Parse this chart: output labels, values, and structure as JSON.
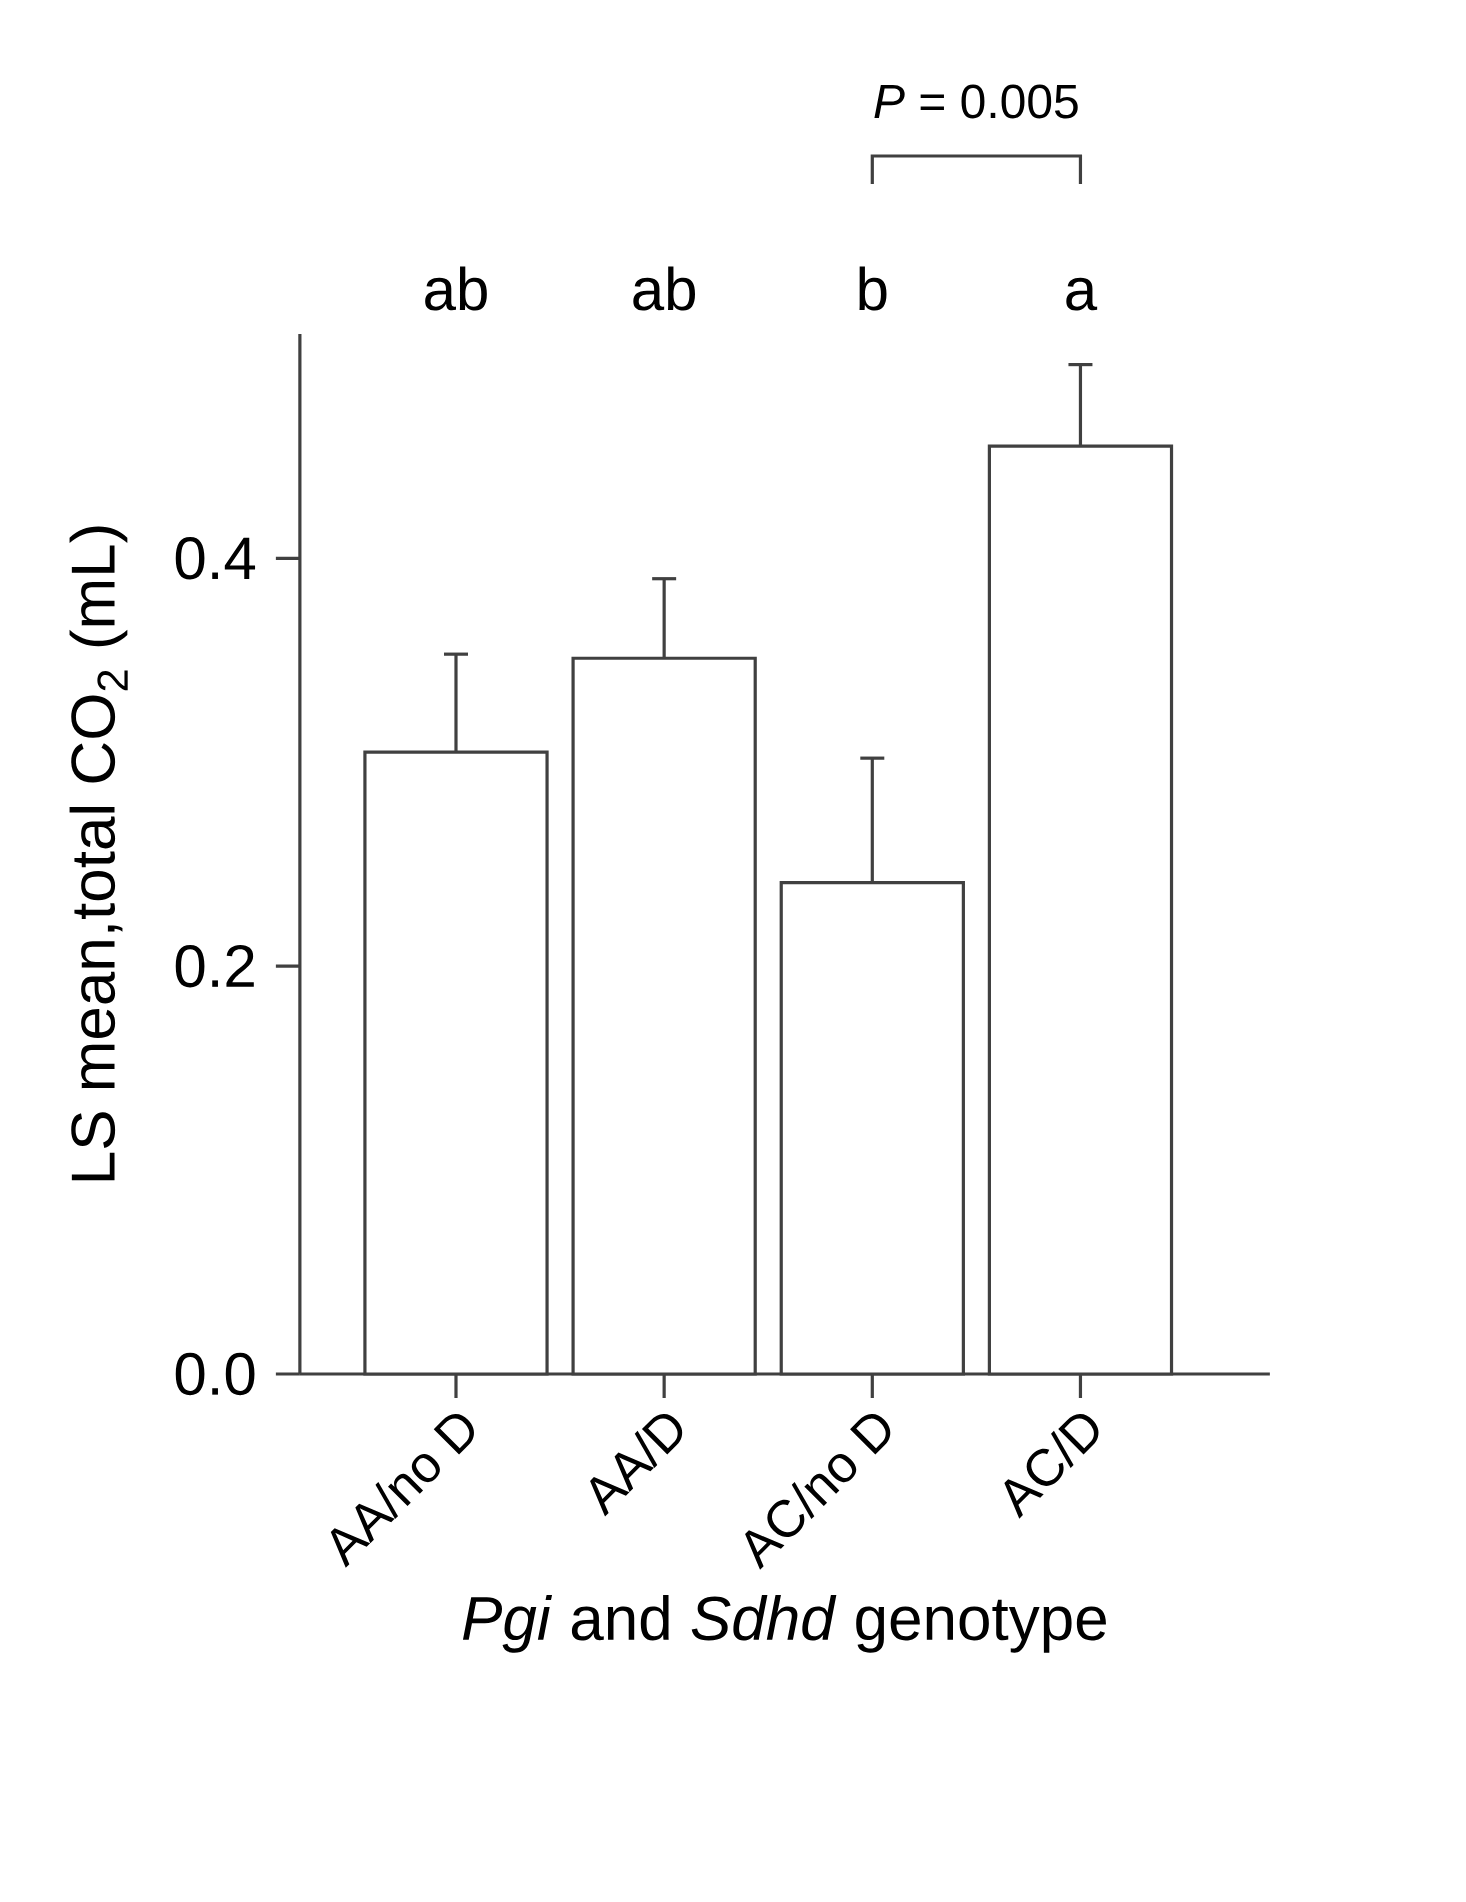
{
  "chart_data": {
    "type": "bar",
    "xlabel": "*Pgi* and *Sdhd* genotype",
    "ylabel": "LS mean,total CO$_{2}$ (mL)",
    "categories": [
      "AA/no D",
      "AA/D",
      "AC/no D",
      "AC/D"
    ],
    "values": [
      0.305,
      0.351,
      0.241,
      0.455
    ],
    "errors": [
      [
        0.305,
        0.353
      ],
      [
        0.351,
        0.39
      ],
      [
        0.241,
        0.302
      ],
      [
        0.455,
        0.495
      ]
    ],
    "color": "#ffffff",
    "ylim": [
      0,
      0.51
    ],
    "yticks": [
      {
        "value": 0,
        "label": "0.0"
      },
      0.2,
      0.4
    ],
    "annotations": [
      "ab",
      "ab",
      "b",
      "a",
      "*P* = 0.005"
    ]
  }
}
